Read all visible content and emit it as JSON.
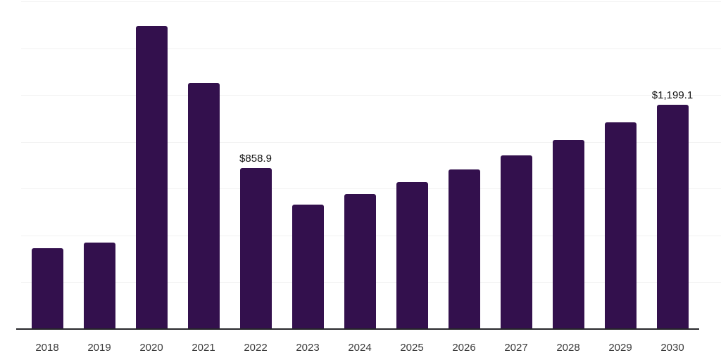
{
  "chart_data": {
    "type": "bar",
    "title": "",
    "xlabel": "",
    "ylabel": "",
    "categories": [
      "2018",
      "2019",
      "2020",
      "2021",
      "2022",
      "2023",
      "2024",
      "2025",
      "2026",
      "2027",
      "2028",
      "2029",
      "2030"
    ],
    "values": [
      431,
      461,
      1620,
      1316,
      858.9,
      664,
      720,
      784,
      851,
      926,
      1009,
      1103,
      1199.1
    ],
    "point_labels": [
      "",
      "",
      "",
      "",
      "$858.9",
      "",
      "",
      "",
      "",
      "",
      "",
      "",
      "$1,199.1"
    ],
    "ylim": [
      0,
      1750
    ],
    "gridline_interval": 250,
    "grid": "horizontal",
    "legend": "none",
    "value_format": "USD"
  },
  "colors": {
    "bar": "#33104d",
    "gridline": "#f1f1f1",
    "axis_line": "#26262a",
    "tick_label": "#3a3a3a",
    "data_label": "#121212",
    "background": "#ffffff"
  }
}
